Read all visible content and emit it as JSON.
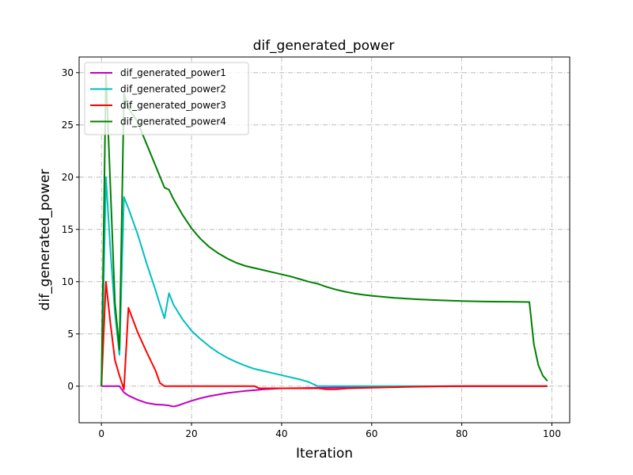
{
  "chart_data": {
    "type": "line",
    "title": "dif_generated_power",
    "xlabel": "Iteration",
    "ylabel": "dif_generated_power",
    "xlim": [
      -4.95,
      103.95
    ],
    "ylim": [
      -3.5,
      31.5
    ],
    "xticks": [
      0,
      20,
      40,
      60,
      80,
      100
    ],
    "yticks": [
      0,
      5,
      10,
      15,
      20,
      25,
      30
    ],
    "grid": true,
    "grid_style": "dashdot",
    "legend_position": "top-left",
    "series": [
      {
        "name": "dif_generated_power1",
        "color": "#bf00bf",
        "points": [
          [
            0,
            0
          ],
          [
            1,
            0
          ],
          [
            2,
            0
          ],
          [
            3,
            0
          ],
          [
            4,
            0
          ],
          [
            5,
            -0.6
          ],
          [
            6,
            -0.9
          ],
          [
            8,
            -1.3
          ],
          [
            10,
            -1.6
          ],
          [
            12,
            -1.75
          ],
          [
            14,
            -1.8
          ],
          [
            15,
            -1.85
          ],
          [
            16,
            -1.95
          ],
          [
            17,
            -1.85
          ],
          [
            18,
            -1.7
          ],
          [
            20,
            -1.4
          ],
          [
            22,
            -1.15
          ],
          [
            24,
            -0.95
          ],
          [
            26,
            -0.8
          ],
          [
            28,
            -0.65
          ],
          [
            30,
            -0.55
          ],
          [
            32,
            -0.45
          ],
          [
            34,
            -0.38
          ],
          [
            36,
            -0.3
          ],
          [
            38,
            -0.25
          ],
          [
            40,
            -0.2
          ],
          [
            45,
            -0.18
          ],
          [
            50,
            -0.15
          ],
          [
            55,
            -0.1
          ],
          [
            60,
            -0.07
          ],
          [
            65,
            -0.05
          ],
          [
            70,
            -0.03
          ],
          [
            75,
            -0.02
          ],
          [
            80,
            -0.01
          ],
          [
            85,
            0
          ],
          [
            90,
            0
          ],
          [
            95,
            0
          ],
          [
            99,
            0
          ]
        ]
      },
      {
        "name": "dif_generated_power2",
        "color": "#00bfbf",
        "points": [
          [
            0,
            0
          ],
          [
            1,
            20
          ],
          [
            2,
            13
          ],
          [
            3,
            7
          ],
          [
            4,
            3
          ],
          [
            5,
            18.1
          ],
          [
            6,
            17
          ],
          [
            8,
            14.6
          ],
          [
            10,
            11.8
          ],
          [
            12,
            9.2
          ],
          [
            13,
            7.8
          ],
          [
            14,
            6.5
          ],
          [
            15,
            8.9
          ],
          [
            16,
            7.8
          ],
          [
            18,
            6.4
          ],
          [
            20,
            5.3
          ],
          [
            22,
            4.5
          ],
          [
            24,
            3.8
          ],
          [
            26,
            3.2
          ],
          [
            28,
            2.7
          ],
          [
            30,
            2.3
          ],
          [
            32,
            1.95
          ],
          [
            34,
            1.65
          ],
          [
            36,
            1.45
          ],
          [
            38,
            1.25
          ],
          [
            40,
            1.05
          ],
          [
            42,
            0.85
          ],
          [
            44,
            0.65
          ],
          [
            46,
            0.4
          ],
          [
            48,
            0
          ],
          [
            50,
            0
          ],
          [
            60,
            0
          ],
          [
            70,
            0
          ],
          [
            80,
            0
          ],
          [
            90,
            0
          ],
          [
            99,
            0
          ]
        ]
      },
      {
        "name": "dif_generated_power3",
        "color": "#ff0000",
        "points": [
          [
            0,
            0
          ],
          [
            1,
            10
          ],
          [
            2,
            6
          ],
          [
            3,
            2.5
          ],
          [
            4,
            1
          ],
          [
            5,
            -0.3
          ],
          [
            6,
            7.5
          ],
          [
            8,
            5.2
          ],
          [
            10,
            3.3
          ],
          [
            12,
            1.5
          ],
          [
            13,
            0.3
          ],
          [
            14,
            0
          ],
          [
            16,
            0
          ],
          [
            20,
            0
          ],
          [
            25,
            0
          ],
          [
            30,
            0
          ],
          [
            33,
            0
          ],
          [
            34,
            0
          ],
          [
            35,
            -0.2
          ],
          [
            38,
            -0.2
          ],
          [
            40,
            -0.2
          ],
          [
            45,
            -0.2
          ],
          [
            48,
            -0.2
          ],
          [
            50,
            -0.3
          ],
          [
            52,
            -0.3
          ],
          [
            55,
            -0.2
          ],
          [
            60,
            -0.15
          ],
          [
            65,
            -0.1
          ],
          [
            70,
            -0.05
          ],
          [
            75,
            -0.02
          ],
          [
            80,
            0
          ],
          [
            90,
            0
          ],
          [
            99,
            0
          ]
        ]
      },
      {
        "name": "dif_generated_power4",
        "color": "#008000",
        "points": [
          [
            0,
            0
          ],
          [
            1,
            30
          ],
          [
            2,
            19
          ],
          [
            3,
            8
          ],
          [
            4,
            3.5
          ],
          [
            5,
            28
          ],
          [
            6,
            26.6
          ],
          [
            8,
            25.3
          ],
          [
            10,
            23.2
          ],
          [
            12,
            21.1
          ],
          [
            14,
            19
          ],
          [
            15,
            18.8
          ],
          [
            16,
            17.9
          ],
          [
            18,
            16.4
          ],
          [
            20,
            15.1
          ],
          [
            22,
            14.1
          ],
          [
            24,
            13.3
          ],
          [
            26,
            12.7
          ],
          [
            28,
            12.2
          ],
          [
            30,
            11.8
          ],
          [
            32,
            11.5
          ],
          [
            34,
            11.3
          ],
          [
            36,
            11.1
          ],
          [
            38,
            10.9
          ],
          [
            40,
            10.7
          ],
          [
            42,
            10.5
          ],
          [
            44,
            10.25
          ],
          [
            46,
            10
          ],
          [
            48,
            9.8
          ],
          [
            50,
            9.5
          ],
          [
            52,
            9.25
          ],
          [
            54,
            9.05
          ],
          [
            56,
            8.88
          ],
          [
            58,
            8.75
          ],
          [
            60,
            8.65
          ],
          [
            65,
            8.45
          ],
          [
            70,
            8.32
          ],
          [
            75,
            8.22
          ],
          [
            80,
            8.15
          ],
          [
            85,
            8.1
          ],
          [
            90,
            8.08
          ],
          [
            95,
            8.05
          ],
          [
            96,
            4
          ],
          [
            97,
            2
          ],
          [
            98,
            1
          ],
          [
            99,
            0.5
          ]
        ]
      }
    ]
  }
}
